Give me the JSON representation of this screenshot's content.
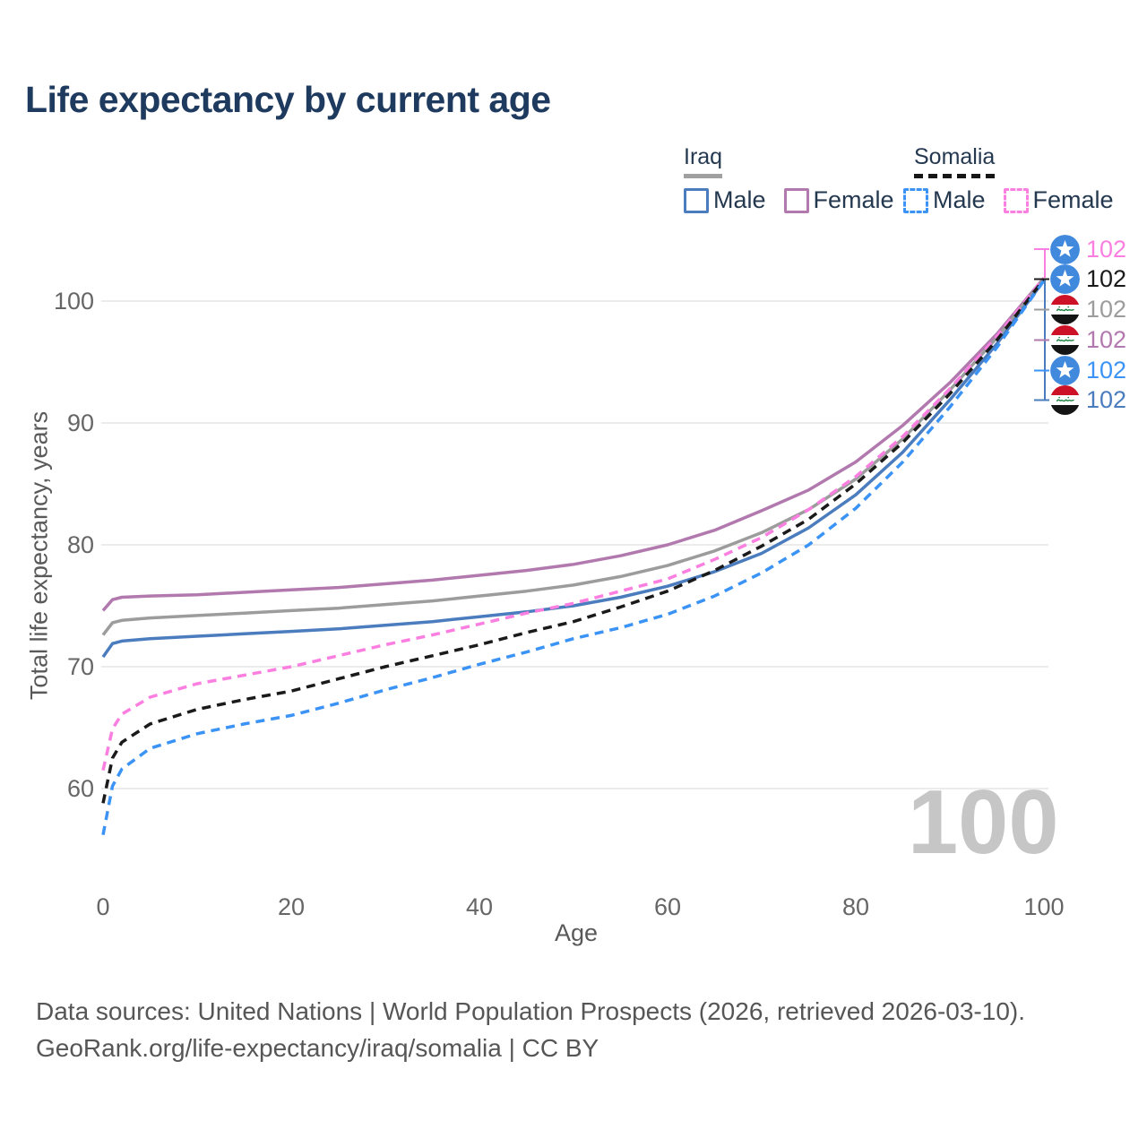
{
  "title": "Life expectancy by current age",
  "watermark": "100",
  "legend": {
    "groups": [
      {
        "label": "Iraq",
        "line_style": "solid",
        "underline_color": "#a0a0a0",
        "items": [
          {
            "label": "Male",
            "color": "#4a7cbe",
            "dashed": false
          },
          {
            "label": "Female",
            "color": "#b279ae",
            "dashed": false
          }
        ]
      },
      {
        "label": "Somalia",
        "line_style": "dashed",
        "underline_color": "#161616",
        "items": [
          {
            "label": "Male",
            "color": "#3b93f5",
            "dashed": true
          },
          {
            "label": "Female",
            "color": "#fb7fe0",
            "dashed": true
          }
        ]
      }
    ]
  },
  "axes": {
    "x": {
      "label": "Age",
      "ticks": [
        0,
        20,
        40,
        60,
        80,
        100
      ],
      "range": [
        0,
        100
      ]
    },
    "y": {
      "label": "Total life expectancy, years",
      "ticks": [
        60,
        70,
        80,
        90,
        100
      ],
      "range": [
        55,
        104
      ]
    }
  },
  "end_labels": [
    {
      "value": "102",
      "series": "Somalia Female",
      "flag": "somalia",
      "color": "#fb7fe0"
    },
    {
      "value": "102",
      "series": "Somalia",
      "flag": "somalia",
      "color": "#1a1a1a"
    },
    {
      "value": "102",
      "series": "Iraq",
      "flag": "iraq",
      "color": "#9c9c9c"
    },
    {
      "value": "102",
      "series": "Iraq Female",
      "flag": "iraq",
      "color": "#b279ae"
    },
    {
      "value": "102",
      "series": "Somalia Male",
      "flag": "somalia",
      "color": "#3b93f5"
    },
    {
      "value": "102",
      "series": "Iraq Male",
      "flag": "iraq",
      "color": "#4a7cbe"
    }
  ],
  "flag_colors": {
    "somalia_blue": "#4189dd",
    "iraq_red": "#cd1126",
    "iraq_green": "#17803d"
  },
  "footer": {
    "line1": "Data sources: United Nations | World Population Prospects (2026, retrieved 2026-03-10).",
    "line2": "GeoRank.org/life-expectancy/iraq/somalia | CC BY"
  },
  "chart_data": {
    "type": "line",
    "title": "Life expectancy by current age",
    "xlabel": "Age",
    "ylabel": "Total life expectancy, years",
    "xlim": [
      0,
      100
    ],
    "ylim": [
      55,
      104
    ],
    "grid": "horizontal",
    "legend_position": "top-right",
    "x": [
      0,
      1,
      2,
      5,
      10,
      15,
      20,
      25,
      30,
      35,
      40,
      45,
      50,
      55,
      60,
      65,
      70,
      75,
      80,
      85,
      90,
      95,
      100
    ],
    "series": [
      {
        "name": "Iraq Female",
        "country": "Iraq",
        "sex": "Female",
        "color": "#b279ae",
        "dash": null,
        "values": [
          74.6,
          75.5,
          75.7,
          75.8,
          75.9,
          76.1,
          76.3,
          76.5,
          76.8,
          77.1,
          77.5,
          77.9,
          78.4,
          79.1,
          80.0,
          81.2,
          82.8,
          84.5,
          86.8,
          89.8,
          93.3,
          97.3,
          101.9
        ]
      },
      {
        "name": "Iraq",
        "country": "Iraq",
        "sex": "Both",
        "color": "#9c9c9c",
        "dash": null,
        "values": [
          72.6,
          73.6,
          73.8,
          74.0,
          74.2,
          74.4,
          74.6,
          74.8,
          75.1,
          75.4,
          75.8,
          76.2,
          76.7,
          77.4,
          78.3,
          79.5,
          81.0,
          82.9,
          85.4,
          88.7,
          92.7,
          97.0,
          101.8
        ]
      },
      {
        "name": "Iraq Male",
        "country": "Iraq",
        "sex": "Male",
        "color": "#4a7cbe",
        "dash": null,
        "values": [
          70.8,
          71.9,
          72.1,
          72.3,
          72.5,
          72.7,
          72.9,
          73.1,
          73.4,
          73.7,
          74.1,
          74.5,
          75.0,
          75.7,
          76.6,
          77.8,
          79.3,
          81.4,
          84.1,
          87.6,
          91.9,
          96.5,
          101.7
        ]
      },
      {
        "name": "Somalia Female",
        "country": "Somalia",
        "sex": "Female",
        "color": "#fb7fe0",
        "dash": [
          10,
          7
        ],
        "values": [
          61.5,
          64.9,
          66.1,
          67.5,
          68.6,
          69.3,
          70.0,
          70.9,
          71.8,
          72.6,
          73.5,
          74.4,
          75.2,
          76.2,
          77.2,
          78.8,
          80.6,
          82.9,
          85.6,
          88.9,
          92.8,
          97.1,
          101.9
        ]
      },
      {
        "name": "Somalia",
        "country": "Somalia",
        "sex": "Both",
        "color": "#1a1a1a",
        "dash": [
          10,
          7
        ],
        "values": [
          58.8,
          62.5,
          63.8,
          65.3,
          66.5,
          67.3,
          68.0,
          69.0,
          70.0,
          70.9,
          71.8,
          72.8,
          73.7,
          74.9,
          76.2,
          77.9,
          79.9,
          82.1,
          85.0,
          88.4,
          92.4,
          96.8,
          101.8
        ]
      },
      {
        "name": "Somalia Male",
        "country": "Somalia",
        "sex": "Male",
        "color": "#3b93f5",
        "dash": [
          10,
          7
        ],
        "values": [
          56.2,
          60.2,
          61.6,
          63.3,
          64.5,
          65.3,
          66.0,
          67.0,
          68.1,
          69.1,
          70.2,
          71.2,
          72.3,
          73.2,
          74.3,
          75.8,
          77.7,
          80.0,
          83.0,
          86.8,
          91.3,
          96.2,
          101.7
        ]
      }
    ]
  }
}
